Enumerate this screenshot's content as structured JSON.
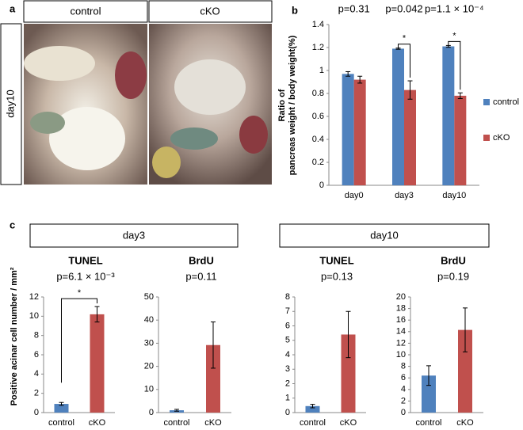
{
  "panel_a": {
    "label": "a",
    "columns": [
      "control",
      "cKO"
    ],
    "row": "day10"
  },
  "panel_c": {
    "label": "c",
    "groups": [
      "day3",
      "day10"
    ],
    "ylabel": "Positive acinar cell number / mm²"
  },
  "chart_data": [
    {
      "type": "bar",
      "panel_label": "b",
      "ylabel": [
        "Ratio of",
        "pancreas weight / body weight(%)"
      ],
      "categories": [
        "day0",
        "day3",
        "day10"
      ],
      "series": [
        {
          "name": "control",
          "color": "#4f81bd",
          "values": [
            0.97,
            1.19,
            1.21
          ],
          "errors": [
            0.02,
            0.005,
            0.008
          ]
        },
        {
          "name": "cKO",
          "color": "#c0504d",
          "values": [
            0.92,
            0.83,
            0.78
          ],
          "errors": [
            0.03,
            0.08,
            0.025
          ]
        }
      ],
      "p_values": [
        "p=0.31",
        "p=0.042",
        "p=1.1 × 10⁻⁴"
      ],
      "significance": [
        null,
        "*",
        "*"
      ],
      "ylim": [
        0,
        1.4
      ],
      "yticks": [
        0,
        0.2,
        0.4,
        0.6,
        0.8,
        1,
        1.2,
        1.4
      ],
      "legend": "right"
    },
    {
      "type": "bar",
      "title": "TUNEL",
      "p_value": "p=6.1 × 10⁻³",
      "significance": "*",
      "categories": [
        "control",
        "cKO"
      ],
      "values": [
        0.9,
        10.2
      ],
      "errors": [
        0.15,
        0.8
      ],
      "colors": [
        "#4f81bd",
        "#c0504d"
      ],
      "ylim": [
        0,
        12
      ],
      "yticks": [
        0,
        2,
        4,
        6,
        8,
        10,
        12
      ]
    },
    {
      "type": "bar",
      "title": "BrdU",
      "p_value": "p=0.11",
      "categories": [
        "control",
        "cKO"
      ],
      "values": [
        1,
        29.2
      ],
      "errors": [
        0.4,
        10
      ],
      "colors": [
        "#4f81bd",
        "#c0504d"
      ],
      "ylim": [
        0,
        50
      ],
      "yticks": [
        0,
        10,
        20,
        30,
        40,
        50
      ]
    },
    {
      "type": "bar",
      "title": "TUNEL",
      "p_value": "p=0.13",
      "categories": [
        "control",
        "cKO"
      ],
      "values": [
        0.45,
        5.4
      ],
      "errors": [
        0.12,
        1.6
      ],
      "colors": [
        "#4f81bd",
        "#c0504d"
      ],
      "ylim": [
        0,
        8
      ],
      "yticks": [
        0,
        1,
        2,
        3,
        4,
        5,
        6,
        7,
        8
      ]
    },
    {
      "type": "bar",
      "title": "BrdU",
      "p_value": "p=0.19",
      "categories": [
        "control",
        "cKO"
      ],
      "values": [
        6.4,
        14.3
      ],
      "errors": [
        1.7,
        3.8
      ],
      "colors": [
        "#4f81bd",
        "#c0504d"
      ],
      "ylim": [
        0,
        20
      ],
      "yticks": [
        0,
        2,
        4,
        6,
        8,
        10,
        12,
        14,
        16,
        18,
        20
      ]
    }
  ]
}
